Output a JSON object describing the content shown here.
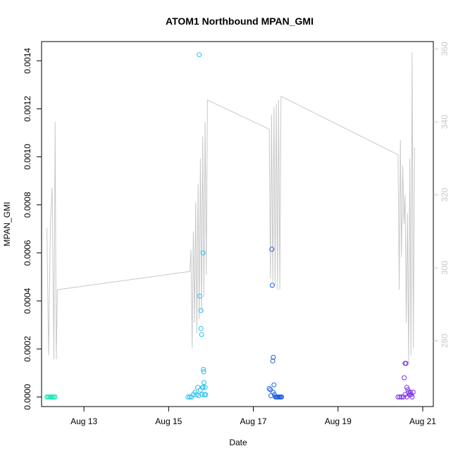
{
  "chart_data": {
    "type": "scatter",
    "title": "ATOM1 Northbound MPAN_GMI",
    "xlabel": "Date",
    "ylabel": "MPAN_GMI",
    "xlim": [
      "2020-08-12 00:00",
      "2020-08-21 06:00"
    ],
    "ylim": [
      -4e-05,
      0.00148
    ],
    "y2lim": [
      262,
      362
    ],
    "x_ticks": [
      {
        "label": "Aug 13",
        "value": "2020-08-13"
      },
      {
        "label": "Aug 15",
        "value": "2020-08-15"
      },
      {
        "label": "Aug 17",
        "value": "2020-08-17"
      },
      {
        "label": "Aug 19",
        "value": "2020-08-19"
      },
      {
        "label": "Aug 21",
        "value": "2020-08-21"
      }
    ],
    "y_ticks": [
      {
        "label": "0.0000",
        "value": 0
      },
      {
        "label": "0.0002",
        "value": 0.0002
      },
      {
        "label": "0.0004",
        "value": 0.0004
      },
      {
        "label": "0.0006",
        "value": 0.0006
      },
      {
        "label": "0.0008",
        "value": 0.0008
      },
      {
        "label": "0.0010",
        "value": 0.001
      },
      {
        "label": "0.0012",
        "value": 0.0012
      },
      {
        "label": "0.0014",
        "value": 0.0014
      }
    ],
    "y2_ticks": [
      {
        "label": "280",
        "value": 280
      },
      {
        "label": "300",
        "value": 300
      },
      {
        "label": "320",
        "value": 320
      },
      {
        "label": "340",
        "value": 340
      },
      {
        "label": "360",
        "value": 360
      }
    ],
    "grid": false,
    "series": [
      {
        "marker": "circle-open",
        "color": "#1de9b6",
        "points": [
          [
            "2020-08-12 03:00",
            0
          ],
          [
            "2020-08-12 03:40",
            0
          ],
          [
            "2020-08-12 04:20",
            0
          ],
          [
            "2020-08-12 05:00",
            0
          ],
          [
            "2020-08-12 05:40",
            0
          ],
          [
            "2020-08-12 06:20",
            0
          ],
          [
            "2020-08-12 07:00",
            0
          ],
          [
            "2020-08-12 07:40",
            0
          ]
        ]
      },
      {
        "marker": "circle-open",
        "color": "#22bff0",
        "points": [
          [
            "2020-08-15 11:00",
            0
          ],
          [
            "2020-08-15 12:00",
            0
          ],
          [
            "2020-08-15 13:00",
            0
          ],
          [
            "2020-08-15 14:00",
            1e-05
          ],
          [
            "2020-08-15 15:00",
            2e-05
          ],
          [
            "2020-08-15 16:00",
            1e-05
          ],
          [
            "2020-08-15 16:30",
            4e-05
          ],
          [
            "2020-08-15 17:00",
            5.5e-06
          ],
          [
            "2020-08-15 17:40",
            0.00042
          ],
          [
            "2020-08-15 18:00",
            2.85e-05
          ],
          [
            "2020-08-15 18:20",
            0.00036
          ],
          [
            "2020-08-15 18:40",
            0.00026
          ],
          [
            "2020-08-15 19:00",
            1e-05
          ],
          [
            "2020-08-15 19:30",
            4e-05
          ],
          [
            "2020-08-15 20:00",
            6e-05
          ],
          [
            "2020-08-15 20:20",
            1e-05
          ],
          [
            "2020-08-15 20:40",
            4e-05
          ],
          [
            "2020-08-15 21:00",
            1e-05
          ],
          [
            "2020-08-15 17:20",
            0.001425
          ],
          [
            "2020-08-15 19:30",
            0.0006
          ],
          [
            "2020-08-15 18:20",
            0.000285
          ],
          [
            "2020-08-15 19:40",
            0.000115
          ],
          [
            "2020-08-15 19:50",
            0.000105
          ],
          [
            "2020-08-15 19:10",
            4e-05
          ]
        ]
      },
      {
        "marker": "circle-open",
        "color": "#1f5ee6",
        "points": [
          [
            "2020-08-17 09:00",
            3.5e-05
          ],
          [
            "2020-08-17 10:00",
            5e-06
          ],
          [
            "2020-08-17 10:30",
            0.000615
          ],
          [
            "2020-08-17 10:40",
            0.000465
          ],
          [
            "2020-08-17 11:00",
            0.00015
          ],
          [
            "2020-08-17 11:20",
            0.000165
          ],
          [
            "2020-08-17 11:40",
            5e-05
          ],
          [
            "2020-08-17 12:00",
            1e-05
          ],
          [
            "2020-08-17 12:30",
            0
          ],
          [
            "2020-08-17 13:00",
            0
          ],
          [
            "2020-08-17 13:30",
            0
          ],
          [
            "2020-08-17 14:00",
            0
          ],
          [
            "2020-08-17 14:30",
            0
          ],
          [
            "2020-08-17 15:00",
            0
          ],
          [
            "2020-08-17 15:30",
            0
          ],
          [
            "2020-08-17 16:00",
            0
          ],
          [
            "2020-08-17 09:40",
            3e-05
          ],
          [
            "2020-08-17 11:10",
            2e-05
          ]
        ]
      },
      {
        "marker": "circle-open",
        "color": "#7a2ee0",
        "points": [
          [
            "2020-08-20 10:00",
            0
          ],
          [
            "2020-08-20 11:00",
            0
          ],
          [
            "2020-08-20 12:00",
            0
          ],
          [
            "2020-08-20 13:00",
            0
          ],
          [
            "2020-08-20 13:30",
            8e-05
          ],
          [
            "2020-08-20 14:00",
            0.00014
          ],
          [
            "2020-08-20 14:30",
            0.00014
          ],
          [
            "2020-08-20 15:00",
            4e-05
          ],
          [
            "2020-08-20 15:30",
            3e-05
          ],
          [
            "2020-08-20 16:00",
            2e-05
          ],
          [
            "2020-08-20 16:30",
            1e-05
          ],
          [
            "2020-08-20 17:00",
            2e-05
          ],
          [
            "2020-08-20 17:30",
            1e-05
          ],
          [
            "2020-08-20 18:00",
            0
          ],
          [
            "2020-08-20 18:30",
            2e-05
          ],
          [
            "2020-08-20 14:00",
            1e-05
          ],
          [
            "2020-08-20 15:00",
            0
          ]
        ]
      }
    ],
    "secondary_line": {
      "color": "#c8c8c8",
      "axis": "right",
      "points": [
        [
          "2020-08-12 03:00",
          311
        ],
        [
          "2020-08-12 04:00",
          276
        ],
        [
          "2020-08-12 05:00",
          312
        ],
        [
          "2020-08-12 06:00",
          322
        ],
        [
          "2020-08-12 07:00",
          275
        ],
        [
          "2020-08-12 07:40",
          340
        ],
        [
          "2020-08-12 08:20",
          275
        ],
        [
          "2020-08-12 09:00",
          294
        ],
        [
          "2020-08-15 12:00",
          299
        ],
        [
          "2020-08-15 12:40",
          305
        ],
        [
          "2020-08-15 13:20",
          278
        ],
        [
          "2020-08-15 14:00",
          310
        ],
        [
          "2020-08-15 14:40",
          285
        ],
        [
          "2020-08-15 15:20",
          318
        ],
        [
          "2020-08-15 16:00",
          282
        ],
        [
          "2020-08-15 16:40",
          323
        ],
        [
          "2020-08-15 17:20",
          286
        ],
        [
          "2020-08-15 18:00",
          330
        ],
        [
          "2020-08-15 18:40",
          288
        ],
        [
          "2020-08-15 19:20",
          336
        ],
        [
          "2020-08-15 20:00",
          292
        ],
        [
          "2020-08-15 20:40",
          340
        ],
        [
          "2020-08-15 21:20",
          298
        ],
        [
          "2020-08-15 22:00",
          346
        ],
        [
          "2020-08-17 09:00",
          338
        ],
        [
          "2020-08-17 09:40",
          297
        ],
        [
          "2020-08-17 10:20",
          342
        ],
        [
          "2020-08-17 11:00",
          296
        ],
        [
          "2020-08-17 11:40",
          344
        ],
        [
          "2020-08-17 12:20",
          295
        ],
        [
          "2020-08-17 13:00",
          345
        ],
        [
          "2020-08-17 13:40",
          294
        ],
        [
          "2020-08-17 14:20",
          346
        ],
        [
          "2020-08-17 15:00",
          294
        ],
        [
          "2020-08-17 15:40",
          347
        ],
        [
          "2020-08-20 10:00",
          331
        ],
        [
          "2020-08-20 10:40",
          294
        ],
        [
          "2020-08-20 11:20",
          335
        ],
        [
          "2020-08-20 12:00",
          303
        ],
        [
          "2020-08-20 12:40",
          328
        ],
        [
          "2020-08-20 13:20",
          312
        ],
        [
          "2020-08-20 14:00",
          320
        ],
        [
          "2020-08-20 14:40",
          285
        ],
        [
          "2020-08-20 15:20",
          315
        ],
        [
          "2020-08-20 16:00",
          274
        ],
        [
          "2020-08-20 16:40",
          330
        ],
        [
          "2020-08-20 17:20",
          276
        ],
        [
          "2020-08-20 18:00",
          359
        ],
        [
          "2020-08-20 18:40",
          278
        ],
        [
          "2020-08-20 19:20",
          333
        ]
      ]
    }
  }
}
